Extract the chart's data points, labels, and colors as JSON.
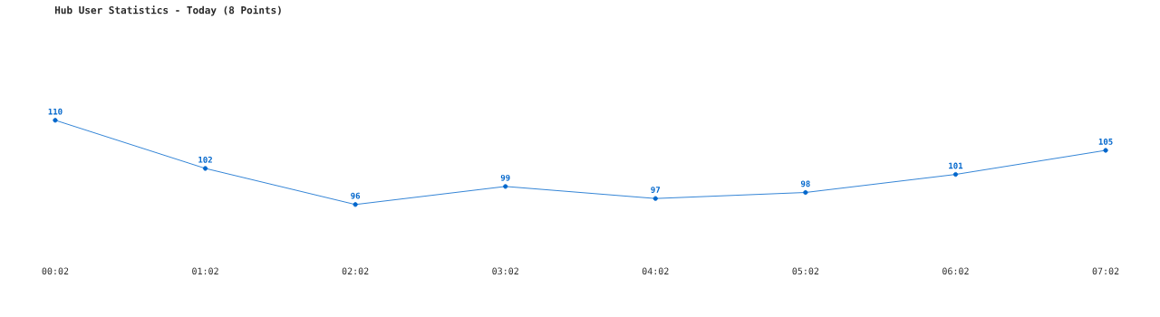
{
  "chart_data": {
    "type": "line",
    "title": "Hub User Statistics - Today (8 Points)",
    "categories": [
      "00:02",
      "01:02",
      "02:02",
      "03:02",
      "04:02",
      "05:02",
      "06:02",
      "07:02"
    ],
    "series": [
      {
        "color": "#0066cc",
        "values": [
          110,
          102,
          96,
          99,
          97,
          98,
          101,
          105
        ]
      }
    ],
    "data_labels": true,
    "marker": "circle",
    "line_style": "solid"
  }
}
